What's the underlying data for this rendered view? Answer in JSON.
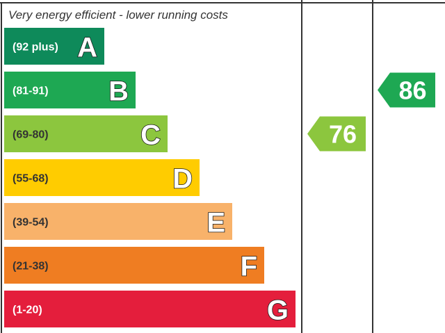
{
  "chart_data": {
    "type": "bar",
    "title": "Very energy efficient - lower running costs",
    "bands": [
      {
        "range": "(92 plus)",
        "letter": "A",
        "min": 92,
        "max": 100,
        "color": "#0e8a5a"
      },
      {
        "range": "(81-91)",
        "letter": "B",
        "min": 81,
        "max": 91,
        "color": "#1ea853"
      },
      {
        "range": "(69-80)",
        "letter": "C",
        "min": 69,
        "max": 80,
        "color": "#8cc63e"
      },
      {
        "range": "(55-68)",
        "letter": "D",
        "min": 55,
        "max": 68,
        "color": "#ffcc00"
      },
      {
        "range": "(39-54)",
        "letter": "E",
        "min": 39,
        "max": 54,
        "color": "#f8b26a"
      },
      {
        "range": "(21-38)",
        "letter": "F",
        "min": 21,
        "max": 38,
        "color": "#ef7d22"
      },
      {
        "range": "(1-20)",
        "letter": "G",
        "min": 1,
        "max": 20,
        "color": "#e41e3c"
      }
    ],
    "ratings": [
      {
        "value": 76,
        "label": "76",
        "band": "C",
        "color": "#8cc63e"
      },
      {
        "value": 86,
        "label": "86",
        "band": "B",
        "color": "#1ea853"
      }
    ]
  }
}
